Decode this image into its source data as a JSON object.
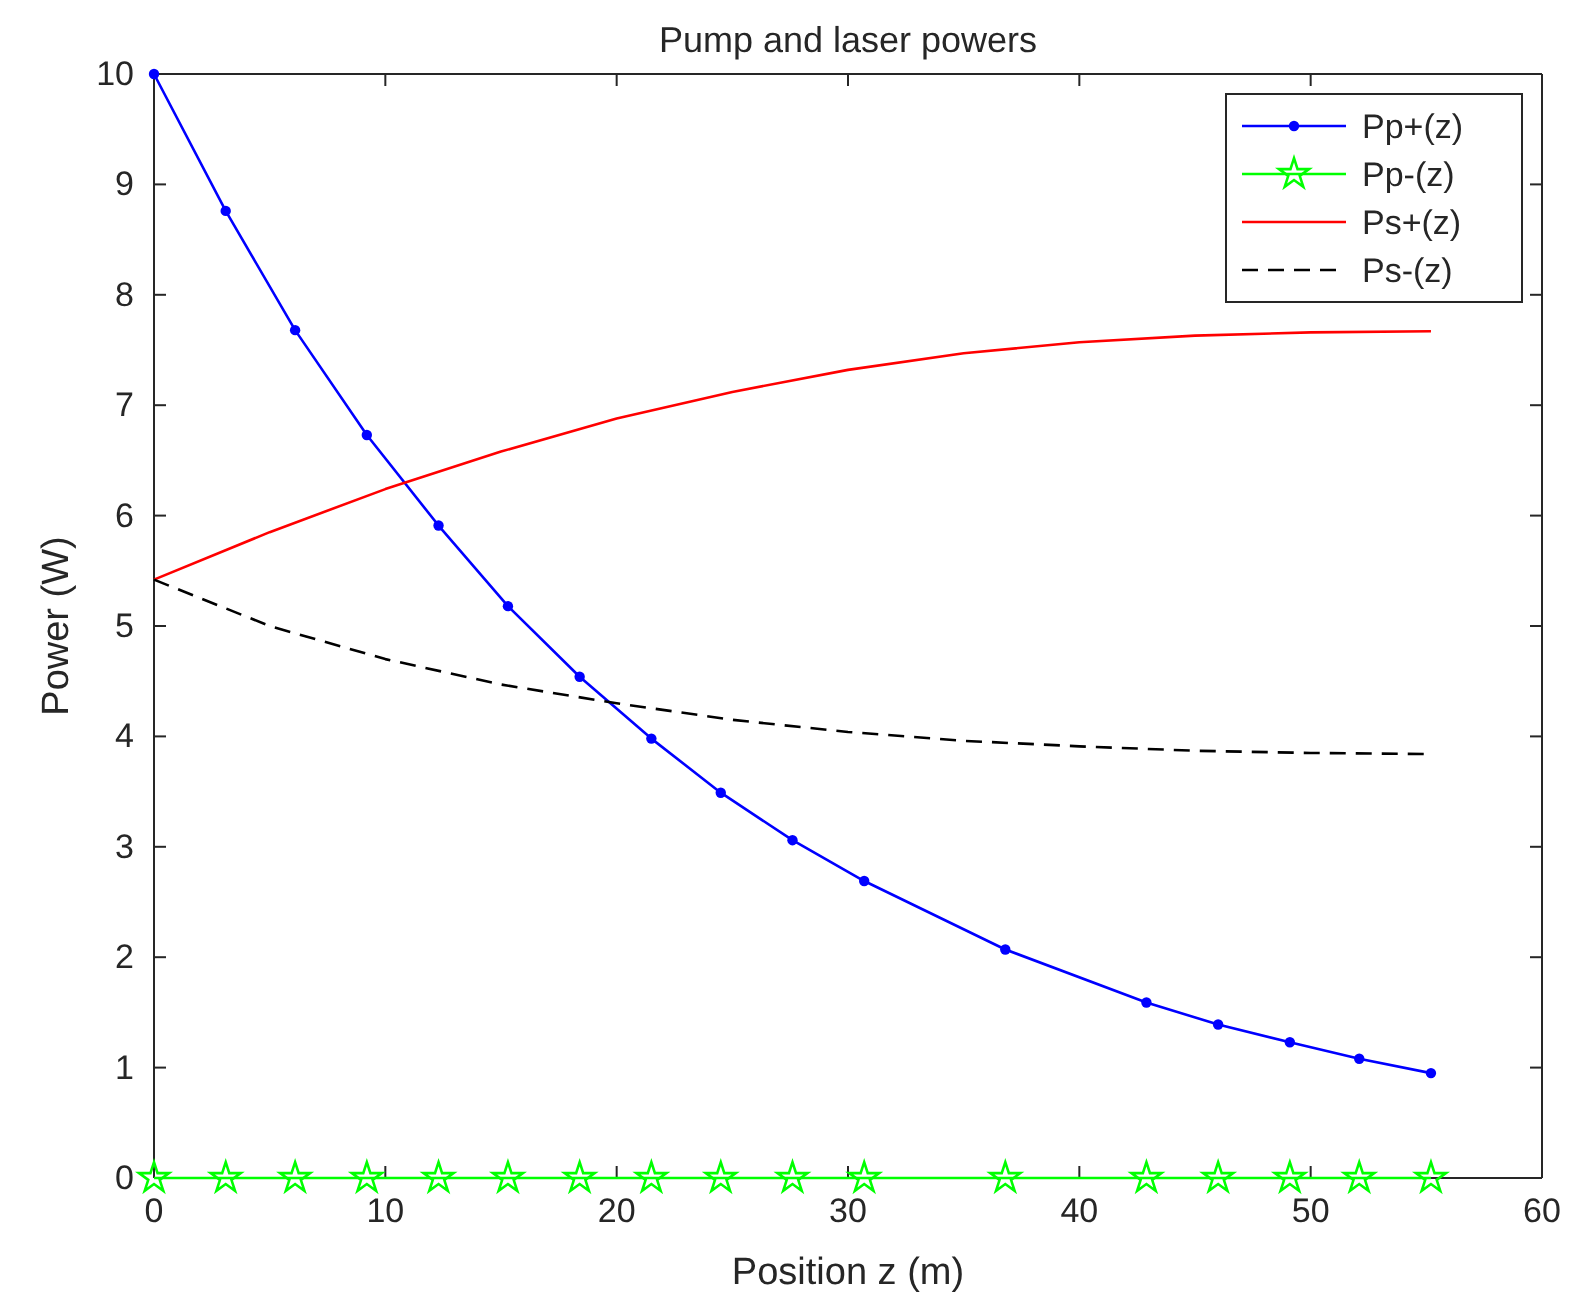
{
  "chart_data": {
    "type": "line",
    "title": "Pump and laser powers",
    "xlabel": "Position z (m)",
    "ylabel": "Power (W)",
    "xlim": [
      0,
      60
    ],
    "xticks": [
      0,
      10,
      20,
      30,
      40,
      50,
      60
    ],
    "ylim": [
      0,
      10
    ],
    "yticks": [
      0,
      1,
      2,
      3,
      4,
      5,
      6,
      7,
      8,
      9,
      10
    ],
    "grid": false,
    "legend": "top right",
    "series": [
      {
        "name": "Pp+(z)",
        "color": "#0000ff",
        "marker": "circle",
        "line_style": "solid",
        "x": [
          0,
          3.1,
          6.1,
          9.2,
          12.3,
          15.3,
          18.4,
          21.5,
          24.5,
          27.6,
          30.7,
          36.8,
          42.9,
          46.0,
          49.1,
          52.1,
          55.2
        ],
        "values": [
          10,
          8.76,
          7.68,
          6.73,
          5.91,
          5.18,
          4.54,
          3.98,
          3.49,
          3.06,
          2.69,
          2.07,
          1.59,
          1.39,
          1.23,
          1.08,
          0.95
        ]
      },
      {
        "name": "Pp-(z)",
        "color": "#00ff00",
        "marker": "star",
        "line_style": "solid",
        "x": [
          0,
          3.1,
          6.1,
          9.2,
          12.3,
          15.3,
          18.4,
          21.5,
          24.5,
          27.6,
          30.7,
          36.8,
          42.9,
          46.0,
          49.1,
          52.1,
          55.2
        ],
        "values": [
          0,
          0,
          0,
          0,
          0,
          0,
          0,
          0,
          0,
          0,
          0,
          0,
          0,
          0,
          0,
          0,
          0
        ]
      },
      {
        "name": "Ps+(z)",
        "color": "#ff0000",
        "marker": "none",
        "line_style": "solid",
        "x": [
          0,
          5,
          10,
          15,
          20,
          25,
          30,
          35,
          40,
          45,
          50,
          55.2
        ],
        "values": [
          5.42,
          5.85,
          6.24,
          6.58,
          6.88,
          7.12,
          7.32,
          7.47,
          7.57,
          7.63,
          7.66,
          7.67
        ]
      },
      {
        "name": "Ps-(z)",
        "color": "#000000",
        "marker": "none",
        "line_style": "dashed",
        "x": [
          0,
          5,
          10,
          15,
          20,
          25,
          30,
          35,
          40,
          45,
          50,
          55.2
        ],
        "values": [
          5.42,
          5.0,
          4.7,
          4.47,
          4.3,
          4.15,
          4.04,
          3.96,
          3.91,
          3.87,
          3.85,
          3.84
        ]
      }
    ]
  }
}
